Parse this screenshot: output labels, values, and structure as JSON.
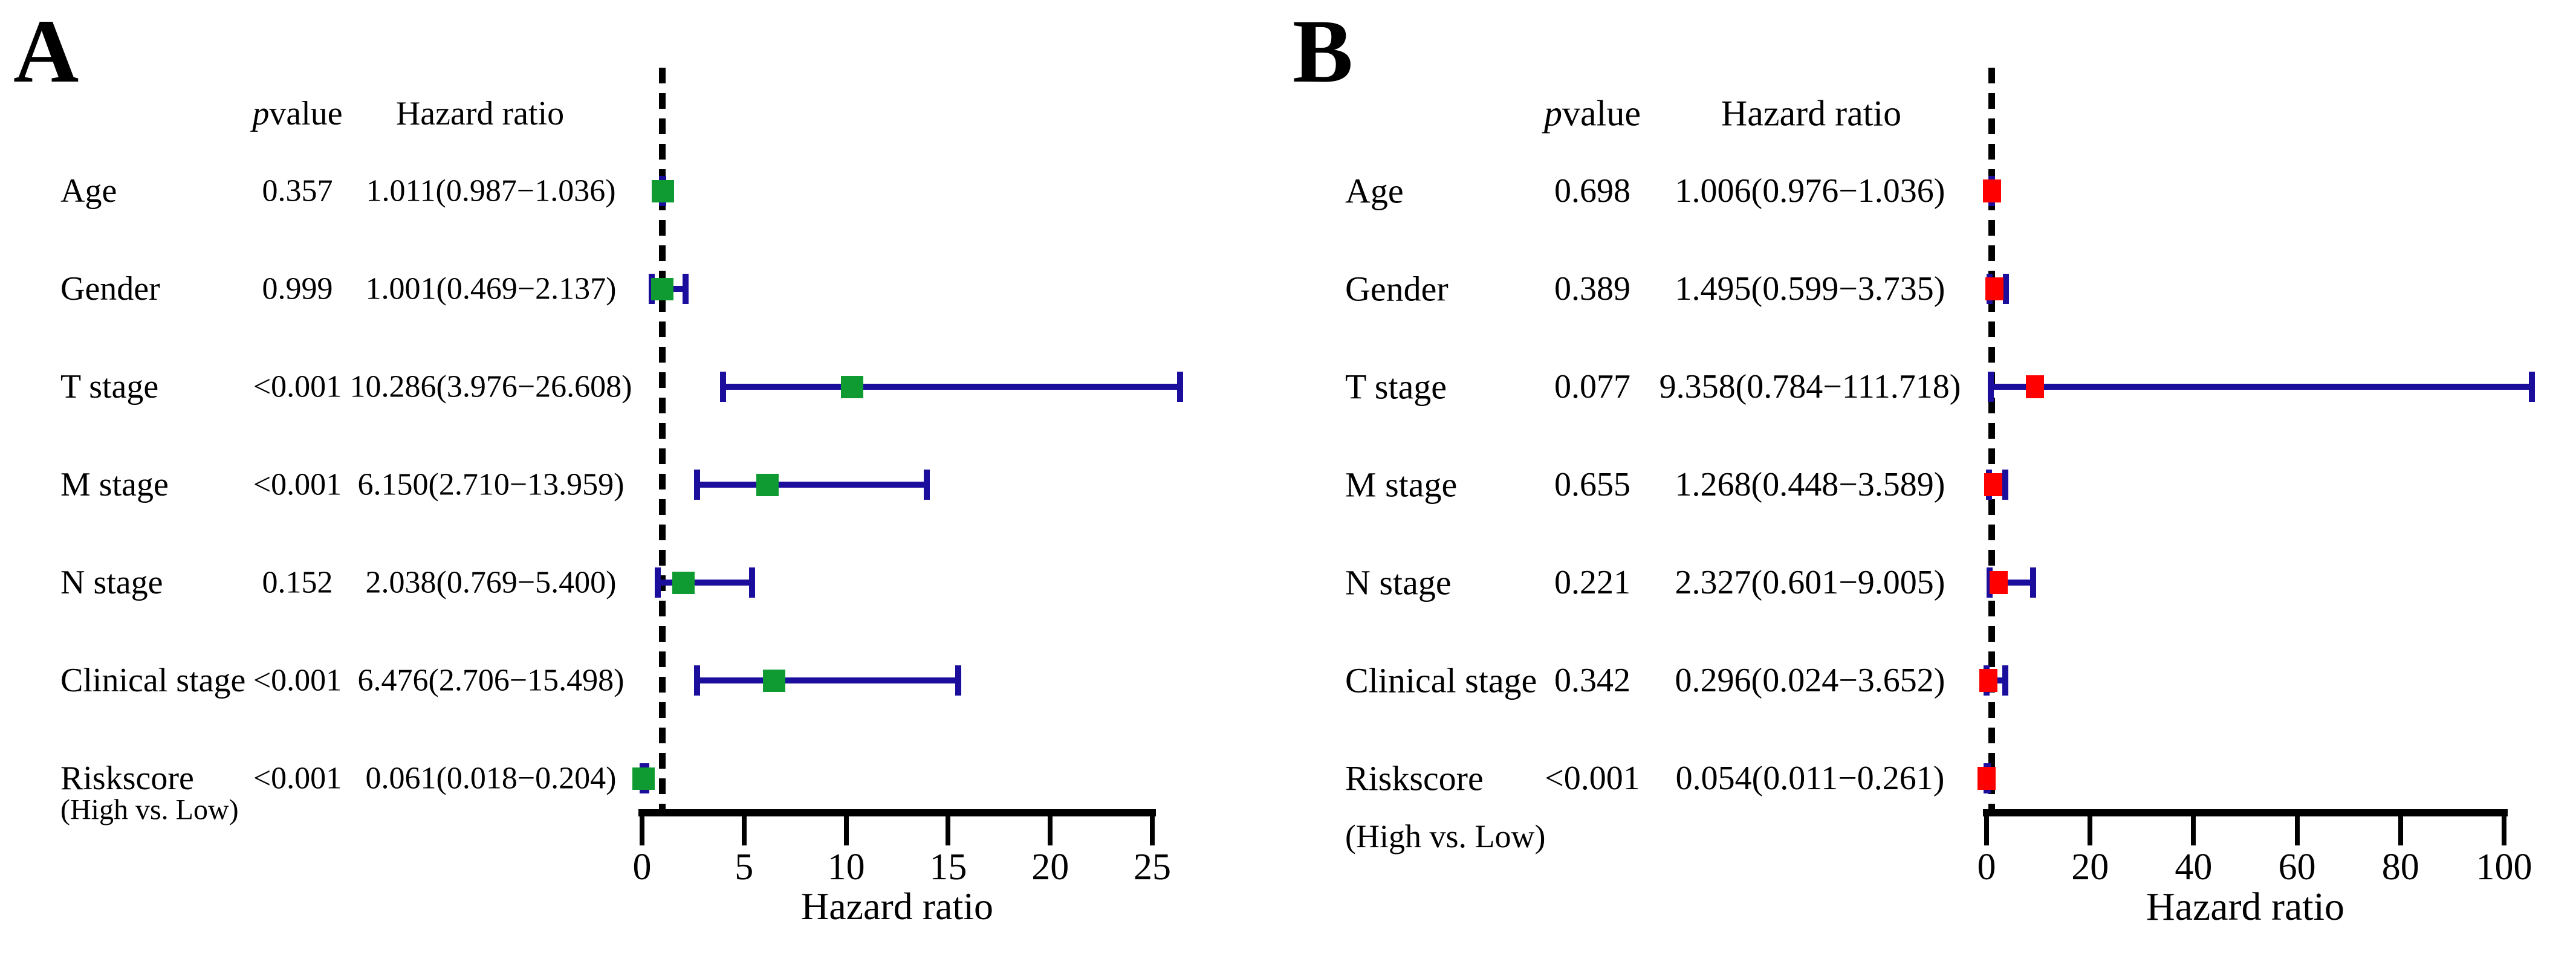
{
  "chart_data": [
    {
      "type": "forest",
      "panel_label": "A",
      "columns": {
        "pvalue_italic": "p",
        "pvalue_rest": "value",
        "hazard": "Hazard ratio"
      },
      "xlabel": "Hazard ratio",
      "xlim": [
        0,
        25
      ],
      "xticks": [
        0,
        5,
        10,
        15,
        20,
        25
      ],
      "reference_line_x": 1,
      "marker_color": "#109B32",
      "ci_color": "#1B0E9C",
      "axis_color": "#000000",
      "rows": [
        {
          "label": "Age",
          "sublabel": "",
          "pvalue": "0.357",
          "hr_text": "1.011(0.987−1.036)",
          "hr": 1.011,
          "ci_low": 0.987,
          "ci_high": 1.036
        },
        {
          "label": "Gender",
          "sublabel": "",
          "pvalue": "0.999",
          "hr_text": "1.001(0.469−2.137)",
          "hr": 1.001,
          "ci_low": 0.469,
          "ci_high": 2.137
        },
        {
          "label": "T stage",
          "sublabel": "",
          "pvalue": "<0.001",
          "hr_text": "10.286(3.976−26.608)",
          "hr": 10.286,
          "ci_low": 3.976,
          "ci_high": 26.608
        },
        {
          "label": "M stage",
          "sublabel": "",
          "pvalue": "<0.001",
          "hr_text": "6.150(2.710−13.959)",
          "hr": 6.15,
          "ci_low": 2.71,
          "ci_high": 13.959
        },
        {
          "label": "N stage",
          "sublabel": "",
          "pvalue": "0.152",
          "hr_text": "2.038(0.769−5.400)",
          "hr": 2.038,
          "ci_low": 0.769,
          "ci_high": 5.4
        },
        {
          "label": "Clinical stage",
          "sublabel": "",
          "pvalue": "<0.001",
          "hr_text": "6.476(2.706−15.498)",
          "hr": 6.476,
          "ci_low": 2.706,
          "ci_high": 15.498
        },
        {
          "label": "Riskscore",
          "sublabel": "(High vs. Low)",
          "pvalue": "<0.001",
          "hr_text": "0.061(0.018−0.204)",
          "hr": 0.061,
          "ci_low": 0.018,
          "ci_high": 0.204
        }
      ]
    },
    {
      "type": "forest",
      "panel_label": "B",
      "columns": {
        "pvalue_italic": "p",
        "pvalue_rest": "value",
        "hazard": "Hazard ratio"
      },
      "xlabel": "Hazard ratio",
      "xlim": [
        0,
        100
      ],
      "xticks": [
        0,
        20,
        40,
        60,
        80,
        100
      ],
      "reference_line_x": 1,
      "marker_color": "#FF0000",
      "ci_color": "#1B0E9C",
      "axis_color": "#000000",
      "rows": [
        {
          "label": "Age",
          "sublabel": "",
          "pvalue": "0.698",
          "hr_text": "1.006(0.976−1.036)",
          "hr": 1.006,
          "ci_low": 0.976,
          "ci_high": 1.036
        },
        {
          "label": "Gender",
          "sublabel": "",
          "pvalue": "0.389",
          "hr_text": "1.495(0.599−3.735)",
          "hr": 1.495,
          "ci_low": 0.599,
          "ci_high": 3.735
        },
        {
          "label": "T stage",
          "sublabel": "",
          "pvalue": "0.077",
          "hr_text": "9.358(0.784−111.718)",
          "hr": 9.358,
          "ci_low": 0.784,
          "ci_high": 111.718
        },
        {
          "label": "M stage",
          "sublabel": "",
          "pvalue": "0.655",
          "hr_text": "1.268(0.448−3.589)",
          "hr": 1.268,
          "ci_low": 0.448,
          "ci_high": 3.589
        },
        {
          "label": "N stage",
          "sublabel": "",
          "pvalue": "0.221",
          "hr_text": "2.327(0.601−9.005)",
          "hr": 2.327,
          "ci_low": 0.601,
          "ci_high": 9.005
        },
        {
          "label": "Clinical stage",
          "sublabel": "",
          "pvalue": "0.342",
          "hr_text": "0.296(0.024−3.652)",
          "hr": 0.296,
          "ci_low": 0.024,
          "ci_high": 3.652
        },
        {
          "label": "Riskscore",
          "sublabel": "(High vs. Low)",
          "pvalue": "<0.001",
          "hr_text": "0.054(0.011−0.261)",
          "hr": 0.054,
          "ci_low": 0.011,
          "ci_high": 0.261
        }
      ]
    }
  ]
}
